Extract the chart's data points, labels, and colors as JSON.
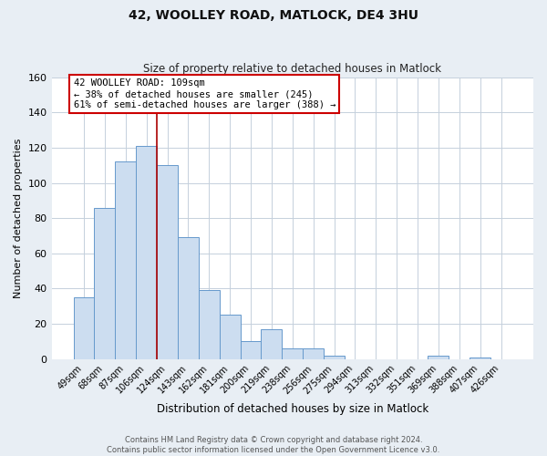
{
  "title": "42, WOOLLEY ROAD, MATLOCK, DE4 3HU",
  "subtitle": "Size of property relative to detached houses in Matlock",
  "xlabel": "Distribution of detached houses by size in Matlock",
  "ylabel": "Number of detached properties",
  "bar_labels": [
    "49sqm",
    "68sqm",
    "87sqm",
    "106sqm",
    "124sqm",
    "143sqm",
    "162sqm",
    "181sqm",
    "200sqm",
    "219sqm",
    "238sqm",
    "256sqm",
    "275sqm",
    "294sqm",
    "313sqm",
    "332sqm",
    "351sqm",
    "369sqm",
    "388sqm",
    "407sqm",
    "426sqm"
  ],
  "bar_values": [
    35,
    86,
    112,
    121,
    110,
    69,
    39,
    25,
    10,
    17,
    6,
    6,
    2,
    0,
    0,
    0,
    0,
    2,
    0,
    1,
    0
  ],
  "bar_color": "#ccddf0",
  "bar_edge_color": "#6699cc",
  "vline_x": 3.5,
  "vline_color": "#aa0000",
  "ylim": [
    0,
    160
  ],
  "yticks": [
    0,
    20,
    40,
    60,
    80,
    100,
    120,
    140,
    160
  ],
  "annotation_text_line1": "42 WOOLLEY ROAD: 109sqm",
  "annotation_text_line2": "← 38% of detached houses are smaller (245)",
  "annotation_text_line3": "61% of semi-detached houses are larger (388) →",
  "footer_line1": "Contains HM Land Registry data © Crown copyright and database right 2024.",
  "footer_line2": "Contains public sector information licensed under the Open Government Licence v3.0.",
  "background_color": "#e8eef4",
  "plot_bg_color": "#ffffff",
  "grid_color": "#c5d0dc"
}
